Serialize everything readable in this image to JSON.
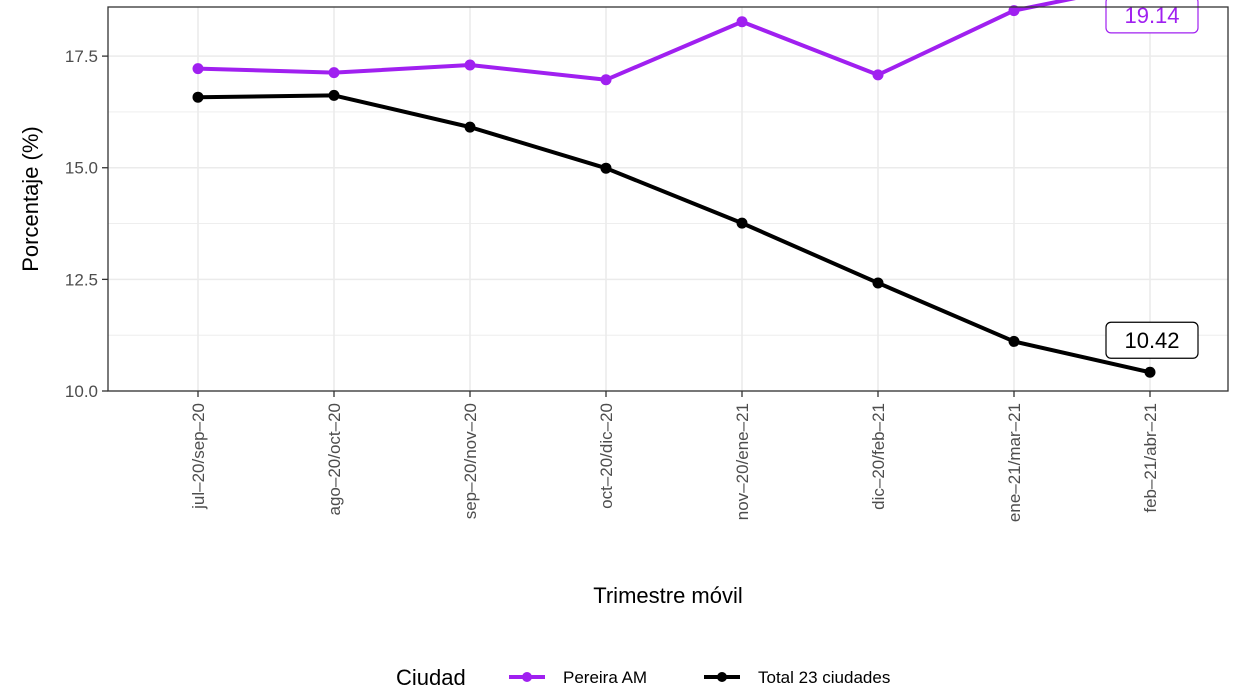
{
  "chart_data": {
    "type": "line",
    "xlabel": "Trimestre móvil",
    "ylabel": "Porcentaje (%)",
    "ylim": [
      10,
      18.6
    ],
    "yticks": [
      "10.0",
      "12.5",
      "15.0",
      "17.5"
    ],
    "grid": true,
    "categories": [
      "jul–20/sep–20",
      "ago–20/oct–20",
      "sep–20/nov–20",
      "oct–20/dic–20",
      "nov–20/ene–21",
      "dic–20/feb–21",
      "ene–21/mar–21",
      "feb–21/abr–21"
    ],
    "series": [
      {
        "name": "Pereira AM",
        "color": "#a020f0",
        "values": [
          17.22,
          17.13,
          17.3,
          16.97,
          18.27,
          17.08,
          18.52,
          19.14
        ],
        "end_label": "19.14"
      },
      {
        "name": "Total 23 ciudades",
        "color": "#000000",
        "values": [
          16.58,
          16.62,
          15.91,
          14.99,
          13.76,
          12.42,
          11.11,
          10.42
        ],
        "end_label": "10.42"
      }
    ],
    "legend": {
      "title": "Ciudad",
      "position": "bottom"
    }
  }
}
